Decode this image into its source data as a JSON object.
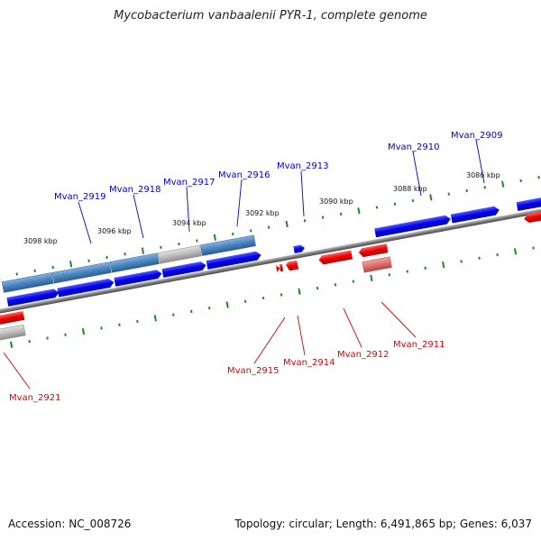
{
  "title": "Mycobacterium vanbaalenii PYR-1, complete genome",
  "accession": "Accession: NC_008726",
  "summary": "Topology: circular; Length: 6,491,865 bp; Genes: 6,037",
  "colors": {
    "forward": "#0000ee",
    "reverse": "#ee0000",
    "forward_feature": "#4a85c0",
    "reverse_feature": "#e05a5a",
    "neutral_feature": "#b8b8b8",
    "ticks": "#1f8a1f",
    "backbone": "#7a7a7a"
  },
  "kbp_labels": [
    "3098 kbp",
    "3096 kbp",
    "3094 kbp",
    "3092 kbp",
    "3090 kbp",
    "3088 kbp",
    "3086 kbp"
  ],
  "forward_labels": [
    "Mvan_2919",
    "Mvan_2918",
    "Mvan_2917",
    "Mvan_2916",
    "Mvan_2913",
    "Mvan_2910",
    "Mvan_2909"
  ],
  "reverse_labels": [
    "Mvan_2921",
    "Mvan_2915",
    "Mvan_2914",
    "Mvan_2912",
    "Mvan_2911"
  ]
}
